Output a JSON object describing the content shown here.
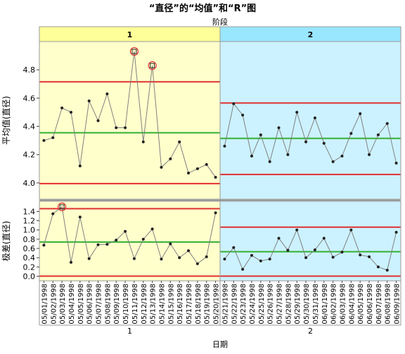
{
  "chart_data": {
    "type": "line",
    "title": "“直径”的“均值”和“R”图",
    "phase_axis_label": "阶段",
    "x_axis_label": "日期",
    "phases": [
      {
        "label": "1",
        "dates": [
          "05/01/1998",
          "05/02/1998",
          "05/03/1998",
          "05/04/1998",
          "05/05/1998",
          "05/06/1998",
          "05/07/1998",
          "05/08/1998",
          "05/09/1998",
          "05/10/1998",
          "05/11/1998",
          "05/12/1998",
          "05/13/1998",
          "05/14/1998",
          "05/15/1998",
          "05/16/1998",
          "05/17/1998",
          "05/18/1998",
          "05/19/1998",
          "05/20/1998"
        ],
        "xbar": {
          "center": 4.355,
          "ucl": 4.715,
          "lcl": 3.995,
          "values": [
            4.3,
            4.32,
            4.53,
            4.5,
            4.12,
            4.58,
            4.44,
            4.63,
            4.39,
            4.39,
            4.93,
            4.29,
            4.83,
            4.11,
            4.17,
            4.29,
            4.07,
            4.1,
            4.13,
            4.04
          ]
        },
        "range": {
          "center": 0.74,
          "ucl": 1.46,
          "lcl": 0.0,
          "values": [
            0.67,
            1.35,
            1.5,
            0.3,
            1.28,
            0.38,
            0.68,
            0.69,
            0.78,
            0.97,
            0.38,
            0.8,
            1.02,
            0.37,
            0.7,
            0.4,
            0.55,
            0.27,
            0.42,
            1.37
          ]
        }
      },
      {
        "label": "2",
        "dates": [
          "05/21/1998",
          "05/22/1998",
          "05/23/1998",
          "05/24/1998",
          "05/25/1998",
          "05/26/1998",
          "05/27/1998",
          "05/28/1998",
          "05/29/1998",
          "05/30/1998",
          "05/31/1998",
          "06/01/1998",
          "06/02/1998",
          "06/03/1998",
          "06/04/1998",
          "06/05/1998",
          "06/06/1998",
          "06/07/1998",
          "06/08/1998",
          "06/09/1998"
        ],
        "xbar": {
          "center": 4.315,
          "ucl": 4.565,
          "lcl": 4.06,
          "values": [
            4.26,
            4.56,
            4.48,
            4.19,
            4.34,
            4.15,
            4.39,
            4.2,
            4.5,
            4.29,
            4.46,
            4.28,
            4.15,
            4.19,
            4.35,
            4.49,
            4.2,
            4.34,
            4.42,
            4.14
          ]
        },
        "range": {
          "center": 0.53,
          "ucl": 1.06,
          "lcl": 0.0,
          "values": [
            0.37,
            0.62,
            0.15,
            0.45,
            0.33,
            0.37,
            0.82,
            0.56,
            1.0,
            0.4,
            0.57,
            0.82,
            0.41,
            0.52,
            1.0,
            0.46,
            0.42,
            0.2,
            0.13,
            0.95
          ]
        }
      }
    ],
    "xbar_panel": {
      "ylabel": "平均值(直径)",
      "ylim": [
        3.885,
        5.0
      ],
      "ticks": [
        4.0,
        4.2,
        4.4,
        4.6,
        4.8
      ],
      "tick_labels": [
        "4.0",
        "4.2",
        "4.4",
        "4.6",
        "4.8"
      ]
    },
    "range_panel": {
      "ylabel": "极差(直径)",
      "ylim": [
        -0.1,
        1.62
      ],
      "ticks": [
        0.0,
        0.2,
        0.4,
        0.6,
        0.8,
        1.0,
        1.2,
        1.4
      ],
      "tick_labels": [
        "0.0",
        "0.2",
        "0.4",
        "0.6",
        "0.8",
        "1.0",
        "1.2",
        "1.4"
      ]
    },
    "colors": {
      "phase1_bg": "#ffffcc",
      "phase2_bg": "#ccf2ff",
      "phase1_header": "#ffff99",
      "phase2_header": "#99e6ff",
      "limit_line": "#e03030",
      "center_line": "#33b033",
      "data_line": "#808080",
      "marker": "#222222",
      "alarm_ring": "#e03030"
    }
  }
}
